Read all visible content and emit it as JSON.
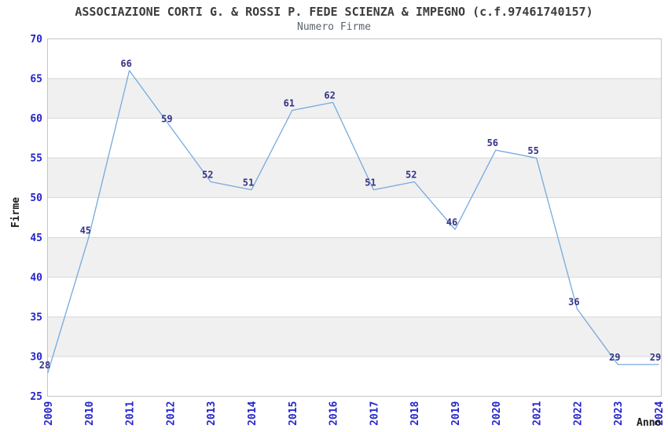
{
  "chart_data": {
    "type": "line",
    "title": "ASSOCIAZIONE CORTI G. & ROSSI P. FEDE SCIENZA & IMPEGNO (c.f.97461740157)",
    "subtitle": "Numero Firme",
    "xlabel": "Anno",
    "ylabel": "Firme",
    "x": [
      "2009",
      "2010",
      "2011",
      "2012",
      "2013",
      "2014",
      "2015",
      "2016",
      "2017",
      "2018",
      "2019",
      "2020",
      "2021",
      "2022",
      "2023",
      "2024"
    ],
    "values": [
      28,
      45,
      66,
      59,
      52,
      51,
      61,
      62,
      51,
      52,
      46,
      56,
      55,
      36,
      29,
      29
    ],
    "ylim": [
      25,
      70
    ],
    "ytick_step": 5,
    "grid": true,
    "legend": "none",
    "colors": {
      "line": "#74aade",
      "band": "#f0f0f0",
      "gridline": "#d9d9d9",
      "frame": "#c4c4c4",
      "tick_label": "#2424cd",
      "value_label": "#333388",
      "axis_title": "#1a1a1a",
      "title": "#3c3c3c",
      "subtitle": "#5a6470",
      "background": "#ffffff"
    }
  }
}
